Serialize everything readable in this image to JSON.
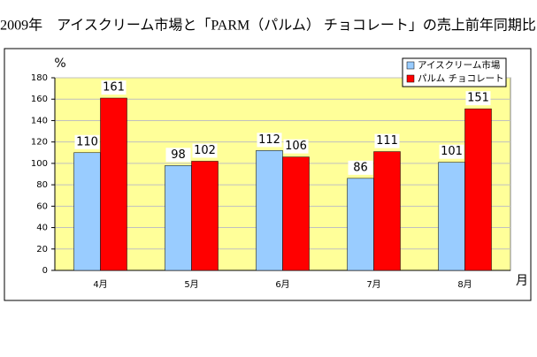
{
  "chart_data": {
    "type": "bar",
    "title": "＜2009年　アイスクリーム市場と「PARM（パルム） チョコレート」の売上前年同期比＞",
    "y_unit": "%",
    "x_unit": "月",
    "categories": [
      "4月",
      "5月",
      "6月",
      "7月",
      "8月"
    ],
    "series": [
      {
        "name": "アイスクリーム市場",
        "color": "#99ccff",
        "values": [
          110,
          98,
          112,
          86,
          101
        ]
      },
      {
        "name": "パルム チョコレート",
        "color": "#ff0000",
        "values": [
          161,
          102,
          106,
          111,
          151
        ]
      }
    ],
    "ylim": [
      0,
      180
    ],
    "yticks": [
      0,
      20,
      40,
      60,
      80,
      100,
      120,
      140,
      160,
      180
    ],
    "grid": true
  }
}
